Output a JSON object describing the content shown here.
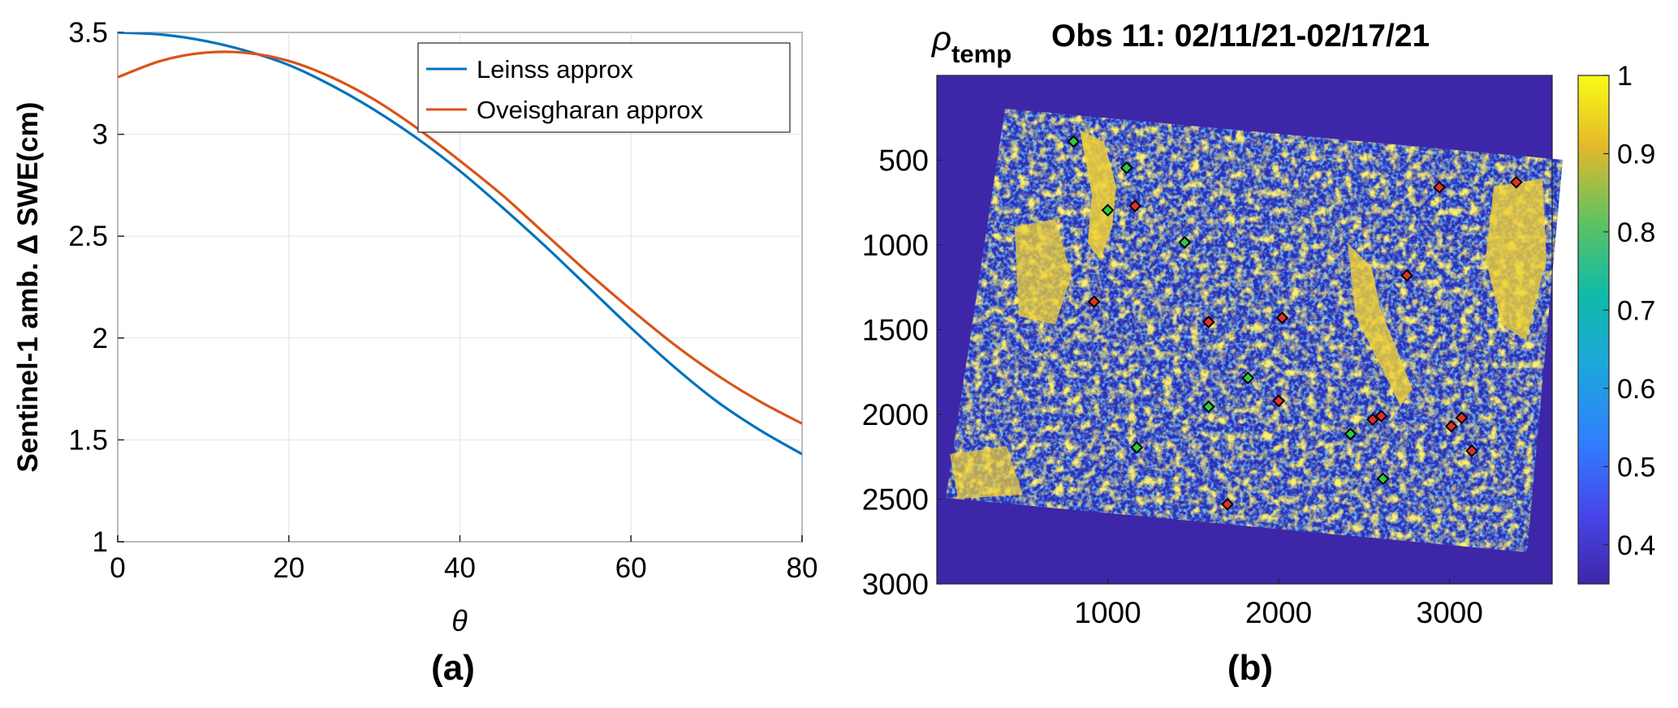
{
  "panels": {
    "a_label": "(a)",
    "b_label": "(b)"
  },
  "chart_data": [
    {
      "type": "line",
      "title": "",
      "xlabel": "θ",
      "ylabel": "Sentinel-1 amb. Δ SWE(cm)",
      "xlim": [
        0,
        80
      ],
      "ylim": [
        1,
        3.5
      ],
      "xticks": [
        0,
        20,
        40,
        60,
        80
      ],
      "yticks": [
        1,
        1.5,
        2,
        2.5,
        3,
        3.5
      ],
      "xtick_labels": [
        "0",
        "20",
        "40",
        "60",
        "80"
      ],
      "ytick_labels": [
        "1",
        "1.5",
        "2",
        "2.5",
        "3",
        "3.5"
      ],
      "grid": true,
      "legend": "top-right",
      "series": [
        {
          "name": "Leinss approx",
          "color": "#0072BD",
          "x": [
            0,
            5,
            10,
            15,
            20,
            25,
            30,
            35,
            40,
            45,
            50,
            55,
            60,
            65,
            70,
            75,
            80
          ],
          "y": [
            3.5,
            3.49,
            3.46,
            3.41,
            3.34,
            3.24,
            3.12,
            2.98,
            2.82,
            2.64,
            2.45,
            2.25,
            2.05,
            1.86,
            1.69,
            1.55,
            1.43
          ]
        },
        {
          "name": "Oveisgharan approx",
          "color": "#D95319",
          "x": [
            0,
            5,
            10,
            15,
            20,
            25,
            30,
            35,
            40,
            45,
            50,
            55,
            60,
            65,
            70,
            75,
            80
          ],
          "y": [
            3.28,
            3.36,
            3.4,
            3.4,
            3.36,
            3.28,
            3.17,
            3.03,
            2.87,
            2.7,
            2.51,
            2.32,
            2.14,
            1.97,
            1.82,
            1.69,
            1.58
          ]
        }
      ]
    },
    {
      "type": "heatmap",
      "title": "Obs 11: 02/11/21-02/17/21",
      "title_symbol": "ρ",
      "title_subscript": "temp",
      "xlabel": "",
      "ylabel": "",
      "xlim": [
        0,
        3600
      ],
      "ylim": [
        3000,
        0
      ],
      "xticks": [
        1000,
        2000,
        3000
      ],
      "yticks": [
        500,
        1000,
        1500,
        2000,
        2500,
        3000
      ],
      "xtick_labels": [
        "1000",
        "2000",
        "3000"
      ],
      "ytick_labels": [
        "500",
        "1000",
        "1500",
        "2000",
        "2500",
        "3000"
      ],
      "colorbar": {
        "range": [
          0.35,
          1
        ],
        "ticks": [
          0.4,
          0.5,
          0.6,
          0.7,
          0.8,
          0.9,
          1
        ],
        "tick_labels": [
          "0.4",
          "0.5",
          "0.6",
          "0.7",
          "0.8",
          "0.9",
          "1"
        ],
        "colormap": "parula"
      },
      "background_color": "#3e26a8",
      "markers": [
        {
          "x": 800,
          "y": 390,
          "color": "#2ecc40"
        },
        {
          "x": 1110,
          "y": 545,
          "color": "#2ecc40"
        },
        {
          "x": 1000,
          "y": 795,
          "color": "#2ecc40"
        },
        {
          "x": 1160,
          "y": 770,
          "color": "#e0312b"
        },
        {
          "x": 1450,
          "y": 985,
          "color": "#2ecc40"
        },
        {
          "x": 920,
          "y": 1335,
          "color": "#e0312b"
        },
        {
          "x": 1590,
          "y": 1455,
          "color": "#e0312b"
        },
        {
          "x": 2020,
          "y": 1430,
          "color": "#e0312b"
        },
        {
          "x": 1820,
          "y": 1785,
          "color": "#2ecc40"
        },
        {
          "x": 2000,
          "y": 1920,
          "color": "#e0312b"
        },
        {
          "x": 1590,
          "y": 1955,
          "color": "#2ecc40"
        },
        {
          "x": 1170,
          "y": 2195,
          "color": "#2ecc40"
        },
        {
          "x": 1700,
          "y": 2530,
          "color": "#e0312b"
        },
        {
          "x": 2420,
          "y": 2115,
          "color": "#2ecc40"
        },
        {
          "x": 2550,
          "y": 2030,
          "color": "#e0312b"
        },
        {
          "x": 2600,
          "y": 2010,
          "color": "#e0312b"
        },
        {
          "x": 2610,
          "y": 2380,
          "color": "#2ecc40"
        },
        {
          "x": 2750,
          "y": 1180,
          "color": "#e0312b"
        },
        {
          "x": 2940,
          "y": 660,
          "color": "#e0312b"
        },
        {
          "x": 3390,
          "y": 630,
          "color": "#e0312b"
        },
        {
          "x": 3010,
          "y": 2070,
          "color": "#e0312b"
        },
        {
          "x": 3070,
          "y": 2020,
          "color": "#e0312b"
        },
        {
          "x": 3130,
          "y": 2215,
          "color": "#e0312b"
        }
      ]
    }
  ]
}
